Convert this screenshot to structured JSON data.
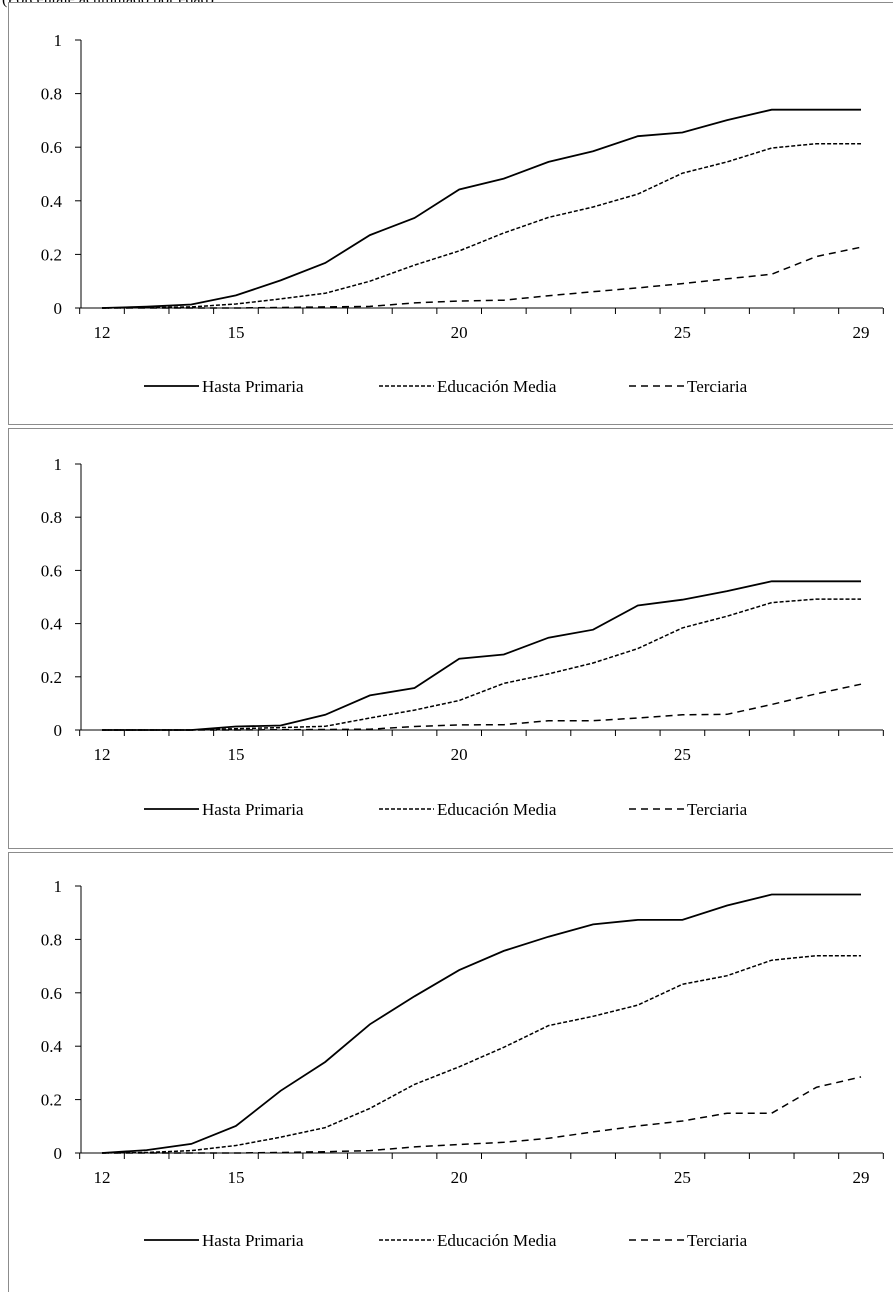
{
  "subtitle": "(Porcentaje acumulado por edad)",
  "colors": {
    "lines": "#000000",
    "frame": "#8c8c8c"
  },
  "chart_data": [
    {
      "type": "line",
      "x": [
        12,
        13,
        14,
        15,
        16,
        17,
        18,
        19,
        20,
        21,
        22,
        23,
        24,
        25,
        26,
        27,
        28,
        29
      ],
      "xticks": [
        "12",
        "15",
        "20",
        "25",
        "29"
      ],
      "yticks": [
        "0",
        "0.2",
        "0.4",
        "0.6",
        "0.8",
        "1"
      ],
      "ylim": [
        0,
        1
      ],
      "xlim": [
        12,
        29
      ],
      "legend_position": "bottom",
      "series": [
        {
          "name": "Hasta Primaria",
          "style": "solid",
          "values": [
            0,
            0.005,
            0.013,
            0.047,
            0.103,
            0.168,
            0.272,
            0.336,
            0.442,
            0.483,
            0.545,
            0.585,
            0.641,
            0.655,
            0.701,
            0.74,
            0.74,
            0.74
          ]
        },
        {
          "name": "Educación Media",
          "style": "dotted",
          "values": [
            0,
            0.001,
            0.004,
            0.015,
            0.034,
            0.055,
            0.1,
            0.16,
            0.213,
            0.28,
            0.338,
            0.377,
            0.425,
            0.503,
            0.545,
            0.597,
            0.613,
            0.613
          ]
        },
        {
          "name": "Terciaria",
          "style": "dashed",
          "values": [
            0,
            0,
            0,
            0,
            0.002,
            0.004,
            0.006,
            0.019,
            0.026,
            0.029,
            0.046,
            0.061,
            0.075,
            0.091,
            0.109,
            0.126,
            0.192,
            0.227
          ]
        }
      ]
    },
    {
      "type": "line",
      "x": [
        12,
        13,
        14,
        15,
        16,
        17,
        18,
        19,
        20,
        21,
        22,
        23,
        24,
        25,
        26,
        27,
        28,
        29
      ],
      "xticks": [
        "12",
        "15",
        "20",
        "25"
      ],
      "yticks": [
        "0",
        "0.2",
        "0.4",
        "0.6",
        "0.8",
        "1"
      ],
      "ylim": [
        0,
        1
      ],
      "xlim": [
        12,
        29
      ],
      "legend_position": "bottom",
      "series": [
        {
          "name": "Hasta Primaria",
          "style": "solid",
          "values": [
            0,
            0,
            0,
            0.013,
            0.017,
            0.057,
            0.13,
            0.158,
            0.268,
            0.284,
            0.347,
            0.377,
            0.468,
            0.49,
            0.522,
            0.559,
            0.559,
            0.559
          ]
        },
        {
          "name": "Educación Media",
          "style": "dotted",
          "values": [
            0,
            0,
            0,
            0.005,
            0.009,
            0.014,
            0.045,
            0.075,
            0.111,
            0.175,
            0.211,
            0.252,
            0.306,
            0.384,
            0.428,
            0.479,
            0.492,
            0.492
          ]
        },
        {
          "name": "Terciaria",
          "style": "dashed",
          "values": [
            0,
            0,
            0,
            0,
            0.001,
            0.002,
            0.003,
            0.013,
            0.019,
            0.02,
            0.035,
            0.035,
            0.045,
            0.057,
            0.059,
            0.096,
            0.136,
            0.172
          ]
        }
      ]
    },
    {
      "type": "line",
      "x": [
        12,
        13,
        14,
        15,
        16,
        17,
        18,
        19,
        20,
        21,
        22,
        23,
        24,
        25,
        26,
        27,
        28,
        29
      ],
      "xticks": [
        "12",
        "15",
        "20",
        "25",
        "29"
      ],
      "yticks": [
        "0",
        "0.2",
        "0.4",
        "0.6",
        "0.8",
        "1"
      ],
      "ylim": [
        0,
        1
      ],
      "xlim": [
        12,
        29
      ],
      "legend_position": "bottom",
      "series": [
        {
          "name": "Hasta Primaria",
          "style": "solid",
          "values": [
            0,
            0.011,
            0.034,
            0.101,
            0.233,
            0.341,
            0.482,
            0.587,
            0.685,
            0.757,
            0.81,
            0.856,
            0.873,
            0.873,
            0.927,
            0.968,
            0.968,
            0.968
          ]
        },
        {
          "name": "Educación Media",
          "style": "dotted",
          "values": [
            0,
            0.002,
            0.009,
            0.028,
            0.059,
            0.095,
            0.167,
            0.257,
            0.323,
            0.396,
            0.477,
            0.512,
            0.554,
            0.632,
            0.664,
            0.722,
            0.739,
            0.739
          ]
        },
        {
          "name": "Terciaria",
          "style": "dashed",
          "values": [
            0,
            0,
            0,
            0,
            0.002,
            0.005,
            0.009,
            0.023,
            0.032,
            0.04,
            0.055,
            0.079,
            0.101,
            0.12,
            0.149,
            0.149,
            0.246,
            0.285
          ]
        }
      ]
    }
  ]
}
